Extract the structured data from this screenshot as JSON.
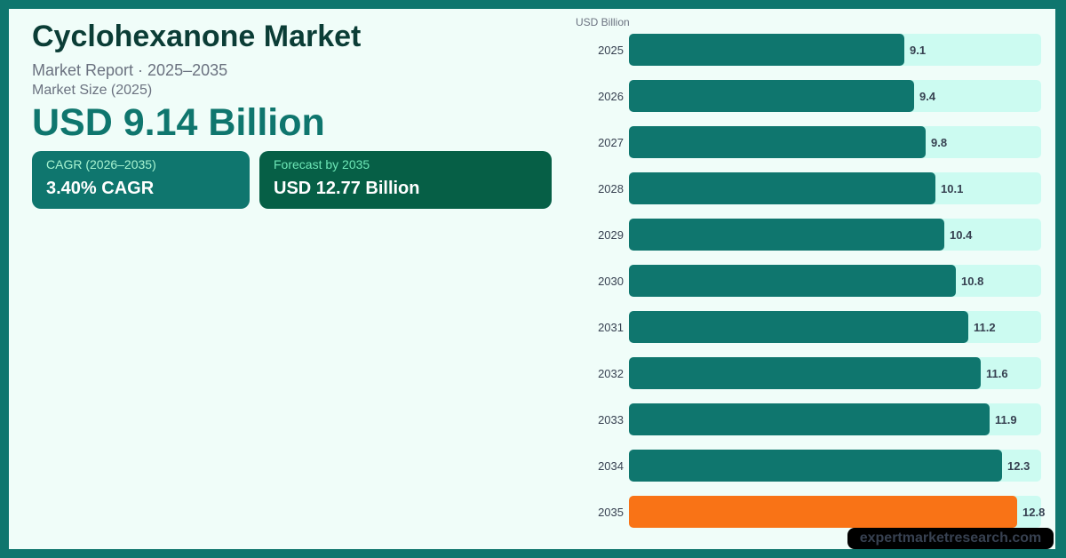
{
  "header": {
    "title": "Cyclohexanone Market",
    "subtitle": "Market Report  ·  2025–2035",
    "size_label": "Market Size (2025)",
    "size_value": "USD 9.14 Billion"
  },
  "cards": {
    "cagr": {
      "label": "CAGR (2026–2035)",
      "value": "3.40% CAGR"
    },
    "forecast": {
      "label": "Forecast by 2035",
      "value": "USD 12.77 Billion"
    }
  },
  "watermark": "expertmarketresearch.com",
  "colors": {
    "bar": "#0f766e",
    "highlight": "#f97316",
    "track": "#ccfbf1",
    "frame": "#0f766e"
  },
  "chart_data": {
    "type": "bar",
    "orientation": "horizontal",
    "unit_label": "USD Billion",
    "categories": [
      "2025",
      "2026",
      "2027",
      "2028",
      "2029",
      "2030",
      "2031",
      "2032",
      "2033",
      "2034",
      "2035"
    ],
    "values": [
      9.1,
      9.4,
      9.8,
      10.1,
      10.4,
      10.8,
      11.2,
      11.6,
      11.9,
      12.3,
      12.8
    ],
    "labels": [
      "9.1",
      "9.4",
      "9.8",
      "10.1",
      "10.4",
      "10.8",
      "11.2",
      "11.6",
      "11.9",
      "12.3",
      "12.8"
    ],
    "highlight_index": 10,
    "title": "",
    "xlabel": "",
    "ylabel": "",
    "xlim": [
      0,
      13.6
    ],
    "grid": false,
    "legend": false
  }
}
